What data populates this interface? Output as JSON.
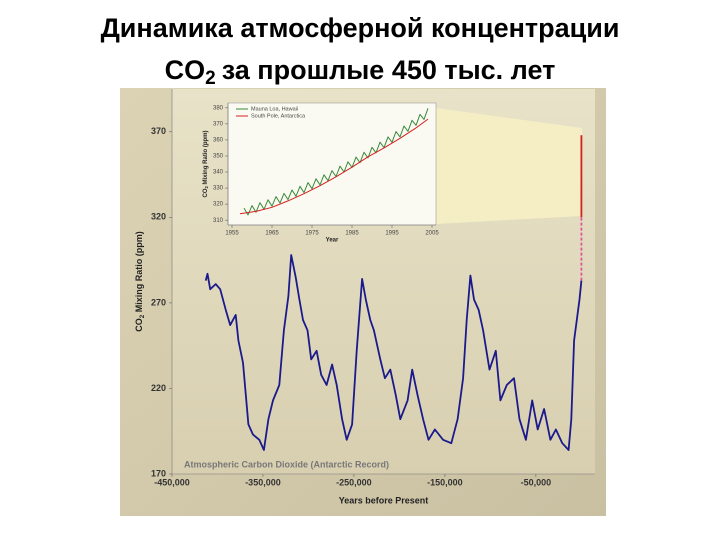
{
  "title_line1": "Динамика атмосферной концентрации",
  "title_line2": {
    "text": "CO",
    "sub": "2",
    "rest": "за прошлые 450 тыс. лет"
  },
  "chart_data": [
    {
      "type": "line",
      "x_label": "Years before Present",
      "y_label": {
        "text": "CO",
        "sub": "2",
        "rest": " Mixing Ratio (ppm)"
      },
      "annotation": "Atmospheric Carbon Dioxide (Antarctic Record)",
      "xlim": [
        -450000,
        15000
      ],
      "xticks": [
        {
          "value": -450000,
          "label": "-450,000"
        },
        {
          "value": -350000,
          "label": "-350,000"
        },
        {
          "value": -250000,
          "label": "-250,000"
        },
        {
          "value": -150000,
          "label": "-150,000"
        },
        {
          "value": -50000,
          "label": "-50,000"
        }
      ],
      "ylim": [
        170,
        395
      ],
      "yticks": [
        170,
        220,
        270,
        320,
        370
      ],
      "series": [
        {
          "color": "#1a1a8c",
          "dash": false,
          "x": [
            -413000,
            -411000,
            -408000,
            -402000,
            -397000,
            -391000,
            -386000,
            -380000,
            -377000,
            -372000,
            -369000,
            -366000,
            -361000,
            -354000,
            -349000,
            -344000,
            -339000,
            -332000,
            -327000,
            -322000,
            -319000,
            -314000,
            -310000,
            -306000,
            -301000,
            -297000,
            -291000,
            -286000,
            -280000,
            -274000,
            -269000,
            -263000,
            -258000,
            -252000,
            -247000,
            -241000,
            -237000,
            -232000,
            -228000,
            -221000,
            -216000,
            -210000,
            -204000,
            -199000,
            -191000,
            -186000,
            -180000,
            -174000,
            -168000,
            -161000,
            -152000,
            -143000,
            -136000,
            -130000,
            -126000,
            -122000,
            -118000,
            -113000,
            -108000,
            -101000,
            -94000,
            -89000,
            -82000,
            -74000,
            -68000,
            -61000,
            -54000,
            -48000,
            -41000,
            -34000,
            -28000,
            -21000,
            -14000,
            -11000,
            -8000,
            -5000,
            -2000,
            0
          ],
          "values": [
            283,
            287,
            278,
            281,
            278,
            266,
            257,
            263,
            248,
            235,
            217,
            199,
            193,
            190,
            184,
            202,
            213,
            222,
            254,
            274,
            298,
            285,
            272,
            260,
            254,
            237,
            242,
            228,
            222,
            234,
            222,
            202,
            190,
            199,
            242,
            284,
            272,
            260,
            254,
            237,
            226,
            231,
            216,
            202,
            213,
            231,
            216,
            202,
            190,
            196,
            190,
            188,
            202,
            226,
            260,
            286,
            272,
            266,
            254,
            231,
            242,
            213,
            222,
            226,
            202,
            190,
            213,
            196,
            208,
            190,
            196,
            188,
            184,
            202,
            248,
            260,
            272,
            283
          ]
        },
        {
          "color": "#e0559a",
          "dash": true,
          "x": [
            0,
            0
          ],
          "values": [
            283,
            320
          ]
        },
        {
          "color": "#d42020",
          "dash": false,
          "x": [
            0,
            0
          ],
          "values": [
            320,
            368
          ]
        }
      ]
    },
    {
      "type": "line",
      "x_label": "Year",
      "y_label": {
        "text": "CO",
        "sub": "2",
        "rest": " Mixing Ratio (ppm)"
      },
      "xlim": [
        1954,
        2006
      ],
      "xticks": [
        1955,
        1965,
        1975,
        1985,
        1995,
        2005
      ],
      "ylim": [
        307,
        383
      ],
      "yticks": [
        310,
        320,
        330,
        340,
        350,
        360,
        370,
        380
      ],
      "series": [
        {
          "name": "Mauna Loa, Hawaii",
          "color": "#3a8a3a",
          "dash": false,
          "x": [
            1958,
            1959,
            1960,
            1961,
            1962,
            1963,
            1964,
            1965,
            1966,
            1967,
            1968,
            1969,
            1970,
            1971,
            1972,
            1973,
            1974,
            1975,
            1976,
            1977,
            1978,
            1979,
            1980,
            1981,
            1982,
            1983,
            1984,
            1985,
            1986,
            1987,
            1988,
            1989,
            1990,
            1991,
            1992,
            1993,
            1994,
            1995,
            1996,
            1997,
            1998,
            1999,
            2000,
            2001,
            2002,
            2003,
            2004
          ],
          "values": [
            317.5,
            313.3,
            319.1,
            315.0,
            320.9,
            316.8,
            322.7,
            318.7,
            324.7,
            320.7,
            326.7,
            322.8,
            328.8,
            324.9,
            331.1,
            327.2,
            333.4,
            329.6,
            335.8,
            332.0,
            338.3,
            334.6,
            340.9,
            337.2,
            343.6,
            340.0,
            346.4,
            342.8,
            349.3,
            345.8,
            352.3,
            348.8,
            355.4,
            352.0,
            358.6,
            355.2,
            361.9,
            358.5,
            365.2,
            361.9,
            368.7,
            365.4,
            372.2,
            369.1,
            375.9,
            372.8,
            379.7
          ]
        },
        {
          "name": "South Pole, Antarctica",
          "color": "#d42020",
          "dash": false,
          "x": [
            1957,
            1961,
            1965,
            1969,
            1973,
            1977,
            1981,
            1985,
            1989,
            1993,
            1997,
            2001,
            2004
          ],
          "values": [
            314,
            315.5,
            318,
            322,
            326.5,
            331.5,
            337,
            343,
            349.5,
            355,
            361,
            367.5,
            373
          ]
        }
      ]
    }
  ]
}
